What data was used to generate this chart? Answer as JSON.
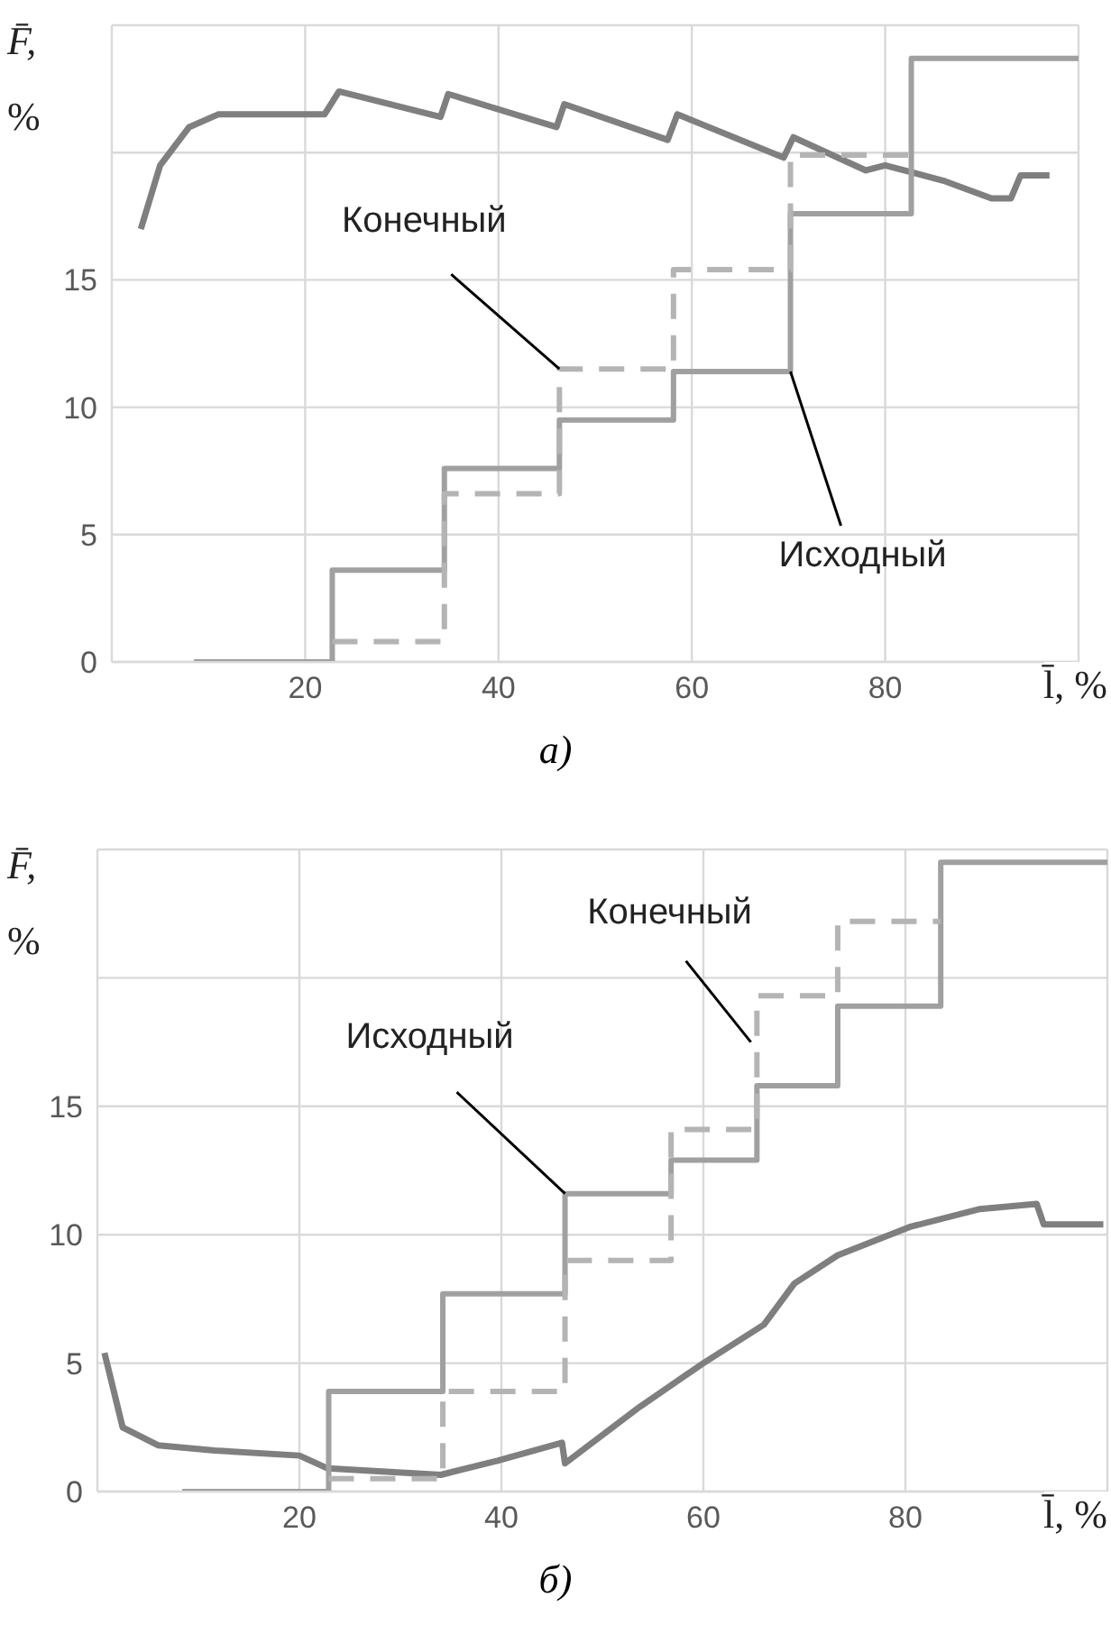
{
  "chart_data": [
    {
      "type": "step",
      "xlabel": "l̄, %",
      "ylabel": "F̄, %",
      "xlim": [
        0,
        100
      ],
      "ylim": [
        0,
        25
      ],
      "xticks": [
        20,
        40,
        60,
        80
      ],
      "yticks": [
        0,
        5,
        10,
        15,
        {
          "value": 20,
          "label": null
        }
      ],
      "grid": true,
      "series": [
        {
          "type": "line",
          "color": "#7f7f7f",
          "x": [
            3,
            5,
            8,
            11,
            22,
            23.5,
            34,
            34.8,
            46,
            46.8,
            57.5,
            58.5,
            69.5,
            70.5,
            78,
            80,
            86,
            91,
            93,
            94,
            97
          ],
          "values": [
            17,
            19.5,
            21,
            21.5,
            21.5,
            22.4,
            21.4,
            22.3,
            21,
            21.9,
            20.5,
            21.5,
            19.8,
            20.6,
            19.3,
            19.5,
            18.9,
            18.2,
            18.2,
            19.1,
            19.1
          ]
        },
        {
          "type": "step",
          "color": "#a0a0a0",
          "line_style": "solid",
          "x": [
            8.5,
            22.8,
            34.4,
            46.3,
            58.1,
            70.2,
            82.7,
            100
          ],
          "values": [
            0,
            3.6,
            7.6,
            9.5,
            11.4,
            17.6,
            23.7,
            23.7
          ]
        },
        {
          "type": "step",
          "color": "#b4b4b4",
          "line_style": "dashed",
          "x": [
            22.8,
            34.4,
            46.3,
            58.1,
            70.2,
            82.7
          ],
          "values": [
            0.8,
            6.6,
            11.5,
            15.4,
            19.9,
            19.9
          ]
        }
      ],
      "annotations": [
        {
          "text": "Конечный",
          "x": 46.3,
          "y": 11.5
        },
        {
          "text": "Исходный",
          "x": 70.2,
          "y": 11.4
        },
        "а)"
      ]
    },
    {
      "type": "step",
      "xlabel": "l̄, %",
      "ylabel": "F̄, %",
      "xlim": [
        0,
        100
      ],
      "ylim": [
        0,
        25
      ],
      "xticks": [
        20,
        40,
        60,
        80
      ],
      "yticks": [
        0,
        5,
        10,
        15,
        {
          "value": 20,
          "label": null
        }
      ],
      "grid": true,
      "series": [
        {
          "type": "line",
          "color": "#7f7f7f",
          "x": [
            0.7,
            2.5,
            6,
            11.6,
            20,
            22.8,
            34,
            39.6,
            46,
            46.3,
            53.7,
            60,
            66,
            69,
            73.3,
            80.4,
            87.4,
            93,
            93.7,
            99.6
          ],
          "values": [
            5.4,
            2.5,
            1.8,
            1.6,
            1.4,
            0.9,
            0.65,
            1.2,
            1.9,
            1.1,
            3.3,
            5,
            6.5,
            8.1,
            9.2,
            10.3,
            11,
            11.2,
            10.4,
            10.4
          ]
        },
        {
          "type": "step",
          "color": "#a0a0a0",
          "line_style": "solid",
          "x": [
            8.4,
            22.9,
            34.2,
            46.3,
            56.8,
            65.3,
            73.3,
            83.5,
            100
          ],
          "values": [
            0,
            3.9,
            7.7,
            11.6,
            12.9,
            15.8,
            18.9,
            24.5,
            24.5
          ]
        },
        {
          "type": "step",
          "color": "#b4b4b4",
          "line_style": "dashed",
          "x": [
            22.9,
            34.2,
            46.3,
            56.8,
            65.3,
            73.3,
            83.5
          ],
          "values": [
            0.5,
            3.9,
            9,
            14.1,
            19.3,
            22.2,
            22.2
          ]
        }
      ],
      "annotations": [
        {
          "text": "Исходный",
          "x": 46.3,
          "y": 11.6
        },
        {
          "text": "Конечный",
          "x": 64.7,
          "y": 17.5
        },
        "б)"
      ]
    }
  ]
}
